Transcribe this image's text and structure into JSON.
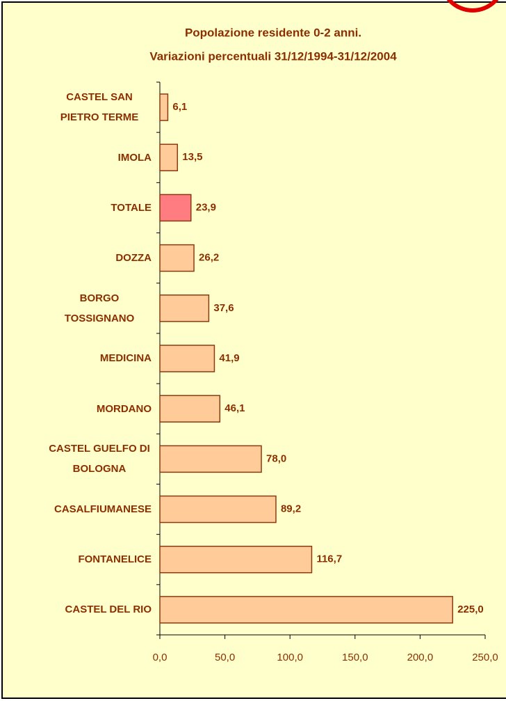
{
  "chart_data": {
    "type": "hbar",
    "title": "Popolazione residente 0-2 anni.",
    "subtitle": "Variazioni percentuali 31/12/1994-31/12/2004",
    "categories": [
      "CASTEL SAN PIETRO TERME",
      "IMOLA",
      "TOTALE",
      "DOZZA",
      "BORGO TOSSIGNANO",
      "MEDICINA",
      "MORDANO",
      "CASTEL GUELFO DI BOLOGNA",
      "CASALFIUMANESE",
      "FONTANELICE",
      "CASTEL DEL RIO"
    ],
    "values": [
      6.1,
      13.5,
      23.9,
      26.2,
      37.6,
      41.9,
      46.1,
      78.0,
      89.2,
      116.7,
      225.0
    ],
    "value_labels": [
      "6,1",
      "13,5",
      "23,9",
      "26,2",
      "37,6",
      "41,9",
      "46,1",
      "78,0",
      "89,2",
      "116,7",
      "225,0"
    ],
    "colors": [
      "#ffcc99",
      "#ffcc99",
      "#ff7c80",
      "#ffcc99",
      "#ffcc99",
      "#ffcc99",
      "#ffcc99",
      "#ffcc99",
      "#ffcc99",
      "#ffcc99",
      "#ffcc99"
    ],
    "xlim": [
      0,
      250
    ],
    "xticks": [
      {
        "value": 0,
        "label": "0,0"
      },
      {
        "value": 50,
        "label": "50,0"
      },
      {
        "value": 100,
        "label": "100,0"
      },
      {
        "value": 150,
        "label": "150,0"
      },
      {
        "value": 200,
        "label": "200,0"
      },
      {
        "value": 250,
        "label": "250,0"
      }
    ],
    "grid": false
  }
}
